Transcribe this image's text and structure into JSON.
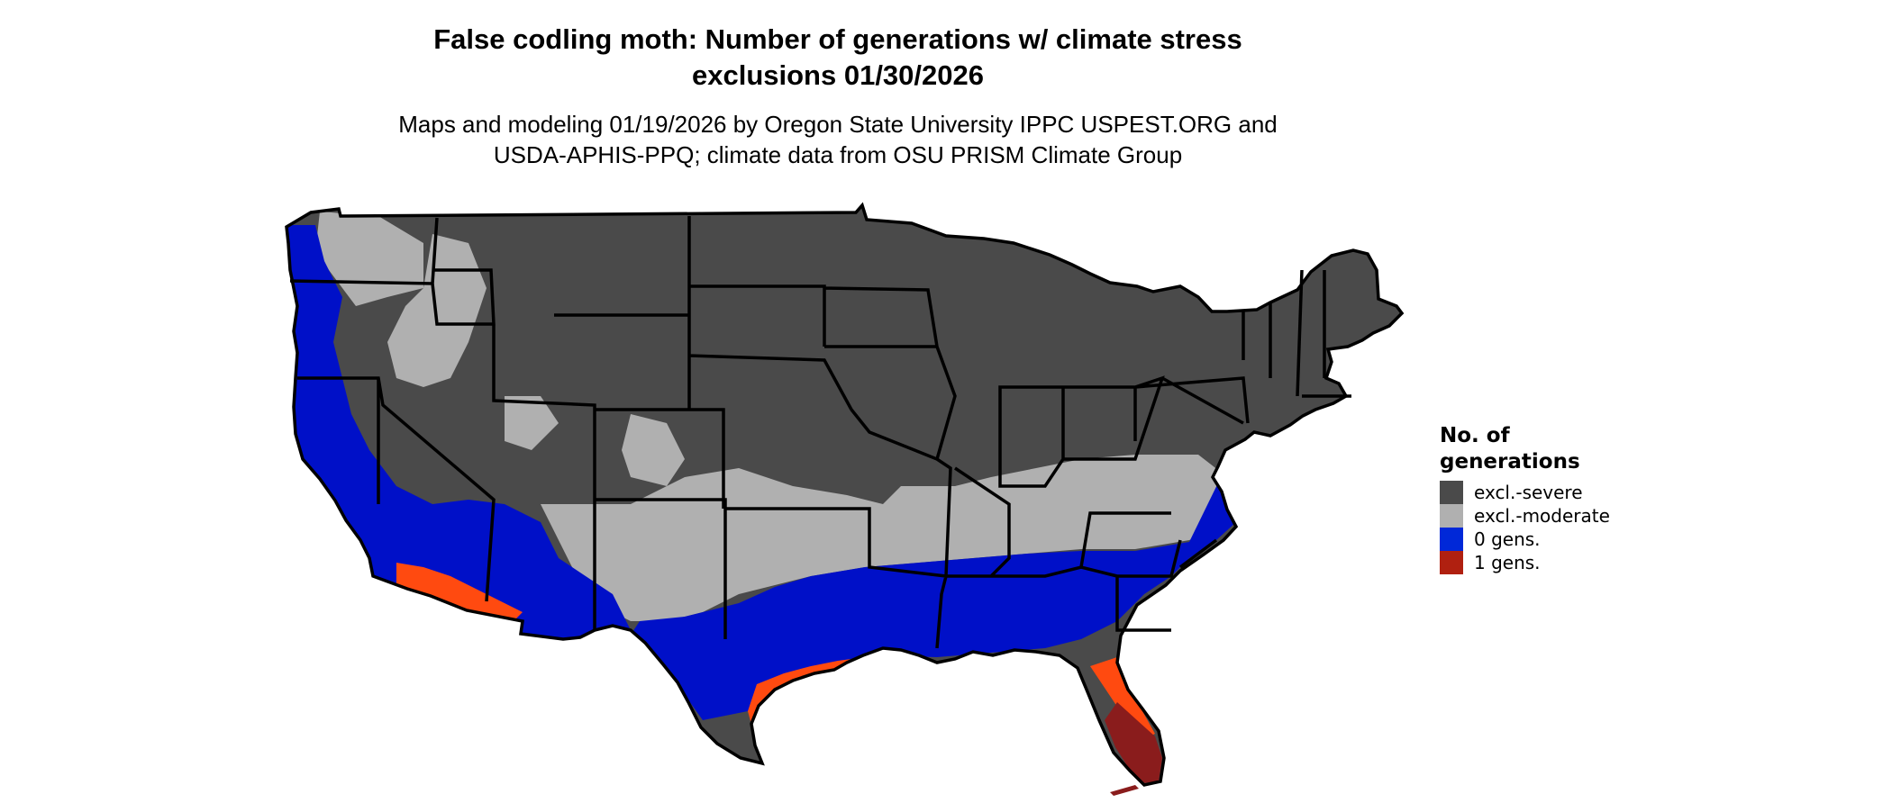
{
  "title_line1": "False codling moth: Number of generations w/ climate stress",
  "title_line2": "exclusions 01/30/2026",
  "subtitle_line1": "Maps and modeling 01/19/2026 by Oregon State University IPPC USPEST.ORG and",
  "subtitle_line2": "USDA-APHIS-PPQ; climate data from OSU PRISM Climate Group",
  "legend": {
    "title_line1": "No. of",
    "title_line2": "generations",
    "items": [
      {
        "label": "excl.-severe",
        "color": "#4a4a4a"
      },
      {
        "label": "excl.-moderate",
        "color": "#b0b0b0"
      },
      {
        "label": "0 gens.",
        "color": "#0028d8"
      },
      {
        "label": "1 gens.",
        "color": "#b02010"
      }
    ]
  },
  "colors": {
    "severe": "#4a4a4a",
    "moderate": "#b0b0b0",
    "zero_gens": "#0010c8",
    "one_gen_light": "#ff4a10",
    "one_gen_dark": "#8a1c1c",
    "border": "#000000"
  }
}
